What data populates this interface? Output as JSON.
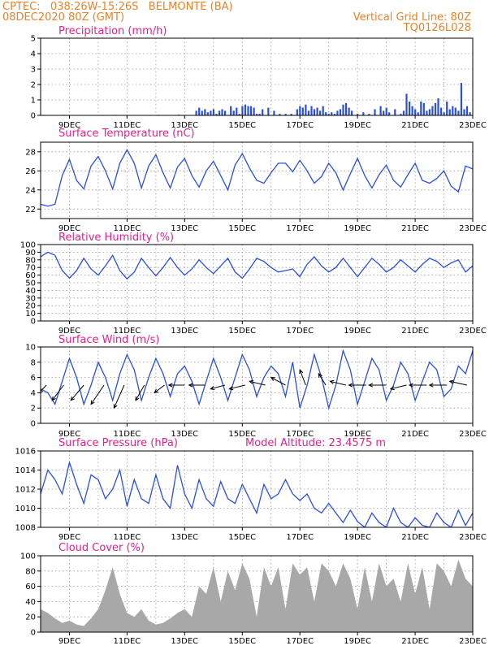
{
  "header": {
    "station": "CPTEC:   038:26W-15:26S   BELMONTE (BA)",
    "run": "08DEC2020 80Z (GMT)",
    "grid_note": "Vertical Grid Line: 80Z",
    "code": "TQ0126L028"
  },
  "colors": {
    "header": "#e8822a",
    "title": "#e0218a",
    "line": "#2a4fe0",
    "precip": "#2a4fe0",
    "cloud": "#a8a8a8",
    "arrow": "#000000"
  },
  "chart_data": [
    {
      "id": "precip",
      "type": "bar",
      "title": "Precipitation (mm/h)",
      "x_range": [
        8,
        23
      ],
      "ylim": [
        0,
        5
      ],
      "yticks": [
        "0",
        "1",
        "2",
        "3",
        "4",
        "5"
      ],
      "xticks": [
        "9DEC",
        "11DEC",
        "13DEC",
        "15DEC",
        "17DEC",
        "19DEC",
        "21DEC",
        "23DEC"
      ],
      "x": [
        8.1,
        8.4,
        8.8,
        9.3,
        9.9,
        10.6,
        11.4,
        12.1,
        12.8,
        13.4,
        13.5,
        13.6,
        13.7,
        13.8,
        13.9,
        14.0,
        14.1,
        14.2,
        14.3,
        14.4,
        14.6,
        14.7,
        14.8,
        14.9,
        15.0,
        15.1,
        15.2,
        15.3,
        15.4,
        15.5,
        15.6,
        15.7,
        15.9,
        16.1,
        16.3,
        16.5,
        16.7,
        16.9,
        17.0,
        17.1,
        17.2,
        17.3,
        17.4,
        17.5,
        17.6,
        17.7,
        17.8,
        17.9,
        18.0,
        18.1,
        18.2,
        18.3,
        18.4,
        18.5,
        18.6,
        18.7,
        18.8,
        19.0,
        19.2,
        19.4,
        19.6,
        19.8,
        19.9,
        20.0,
        20.1,
        20.3,
        20.5,
        20.6,
        20.7,
        20.8,
        20.9,
        21.0,
        21.1,
        21.2,
        21.3,
        21.4,
        21.5,
        21.6,
        21.7,
        21.8,
        21.9,
        22.0,
        22.1,
        22.2,
        22.3,
        22.4,
        22.5,
        22.6,
        22.7,
        22.8,
        22.9
      ],
      "values": [
        0.03,
        0.02,
        0.03,
        0.02,
        0.02,
        0.03,
        0.02,
        0.03,
        0.05,
        0.3,
        0.5,
        0.3,
        0.4,
        0.2,
        0.3,
        0.4,
        0.1,
        0.3,
        0.4,
        0.3,
        0.6,
        0.3,
        0.5,
        0.1,
        0.6,
        0.7,
        0.6,
        0.6,
        0.5,
        0.1,
        0.1,
        0.4,
        0.5,
        0.3,
        0.1,
        0.1,
        0.1,
        0.4,
        0.6,
        0.5,
        0.7,
        0.3,
        0.6,
        0.4,
        0.5,
        0.3,
        0.6,
        0.2,
        0.1,
        0.2,
        0.1,
        0.3,
        0.4,
        0.7,
        0.8,
        0.5,
        0.3,
        0.1,
        0.2,
        0.1,
        0.4,
        0.6,
        0.3,
        0.5,
        0.2,
        0.4,
        0.1,
        0.3,
        1.4,
        0.9,
        0.6,
        0.4,
        0.2,
        0.9,
        0.8,
        0.3,
        0.4,
        0.6,
        0.8,
        1.1,
        0.5,
        0.2,
        0.9,
        0.4,
        0.6,
        0.5,
        0.3,
        2.1,
        0.4,
        0.6,
        0.2
      ]
    },
    {
      "id": "temp",
      "type": "line",
      "title": "Surface Temperature (nC)",
      "x_range": [
        8,
        23
      ],
      "ylim": [
        21,
        29
      ],
      "yticks": [
        "22",
        "24",
        "26",
        "28"
      ],
      "xticks": [
        "9DEC",
        "11DEC",
        "13DEC",
        "15DEC",
        "17DEC",
        "19DEC",
        "21DEC",
        "23DEC"
      ],
      "x": [
        8.0,
        8.25,
        8.5,
        8.75,
        9.0,
        9.25,
        9.5,
        9.75,
        10.0,
        10.25,
        10.5,
        10.75,
        11.0,
        11.25,
        11.5,
        11.75,
        12.0,
        12.25,
        12.5,
        12.75,
        13.0,
        13.25,
        13.5,
        13.75,
        14.0,
        14.25,
        14.5,
        14.75,
        15.0,
        15.25,
        15.5,
        15.75,
        16.0,
        16.25,
        16.5,
        16.75,
        17.0,
        17.25,
        17.5,
        17.75,
        18.0,
        18.25,
        18.5,
        18.75,
        19.0,
        19.25,
        19.5,
        19.75,
        20.0,
        20.25,
        20.5,
        20.75,
        21.0,
        21.25,
        21.5,
        21.75,
        22.0,
        22.25,
        22.5,
        22.75,
        23.0
      ],
      "values": [
        22.5,
        22.3,
        22.5,
        25.5,
        27.2,
        25.0,
        24.1,
        26.5,
        27.5,
        26.0,
        24.1,
        26.8,
        28.2,
        26.8,
        24.2,
        26.5,
        27.7,
        25.8,
        24.2,
        26.4,
        27.3,
        25.5,
        24.3,
        26.0,
        27.0,
        25.5,
        24.0,
        26.6,
        27.8,
        26.3,
        25.0,
        24.7,
        25.8,
        26.8,
        26.8,
        25.9,
        27.1,
        26.0,
        24.7,
        25.4,
        26.8,
        25.8,
        24.0,
        25.7,
        27.3,
        25.5,
        24.2,
        25.6,
        26.6,
        25.0,
        24.3,
        25.6,
        26.8,
        25.0,
        24.7,
        25.2,
        26.0,
        24.4,
        23.8,
        26.5,
        26.2
      ]
    },
    {
      "id": "rh",
      "type": "line",
      "title": "Relative Humidity (%)",
      "x_range": [
        8,
        23
      ],
      "ylim": [
        0,
        100
      ],
      "yticks": [
        "0",
        "10",
        "20",
        "30",
        "40",
        "50",
        "60",
        "70",
        "80",
        "90",
        "100"
      ],
      "xticks": [
        "9DEC",
        "11DEC",
        "13DEC",
        "15DEC",
        "17DEC",
        "19DEC",
        "21DEC",
        "23DEC"
      ],
      "x": [
        8.0,
        8.25,
        8.5,
        8.75,
        9.0,
        9.25,
        9.5,
        9.75,
        10.0,
        10.25,
        10.5,
        10.75,
        11.0,
        11.25,
        11.5,
        11.75,
        12.0,
        12.25,
        12.5,
        12.75,
        13.0,
        13.25,
        13.5,
        13.75,
        14.0,
        14.25,
        14.5,
        14.75,
        15.0,
        15.25,
        15.5,
        15.75,
        16.0,
        16.25,
        16.5,
        16.75,
        17.0,
        17.25,
        17.5,
        17.75,
        18.0,
        18.25,
        18.5,
        18.75,
        19.0,
        19.25,
        19.5,
        19.75,
        20.0,
        20.25,
        20.5,
        20.75,
        21.0,
        21.25,
        21.5,
        21.75,
        22.0,
        22.25,
        22.5,
        22.75,
        23.0
      ],
      "values": [
        84,
        90,
        86,
        66,
        56,
        66,
        82,
        68,
        60,
        72,
        86,
        66,
        55,
        64,
        82,
        70,
        59,
        70,
        83,
        70,
        60,
        68,
        80,
        70,
        62,
        72,
        82,
        64,
        56,
        68,
        82,
        78,
        70,
        64,
        66,
        68,
        58,
        74,
        84,
        72,
        64,
        70,
        82,
        70,
        58,
        70,
        82,
        74,
        64,
        70,
        80,
        72,
        64,
        74,
        82,
        78,
        70,
        76,
        80,
        64,
        72
      ]
    },
    {
      "id": "wind",
      "type": "line",
      "title": "Surface Wind (m/s)",
      "x_range": [
        8,
        23
      ],
      "ylim": [
        0,
        10
      ],
      "yticks": [
        "0",
        "2",
        "4",
        "6",
        "8",
        "10"
      ],
      "xticks": [
        "9DEC",
        "11DEC",
        "13DEC",
        "15DEC",
        "17DEC",
        "19DEC",
        "21DEC",
        "23DEC"
      ],
      "x": [
        8.0,
        8.25,
        8.5,
        8.75,
        9.0,
        9.25,
        9.5,
        9.75,
        10.0,
        10.25,
        10.5,
        10.75,
        11.0,
        11.25,
        11.5,
        11.75,
        12.0,
        12.25,
        12.5,
        12.75,
        13.0,
        13.25,
        13.5,
        13.75,
        14.0,
        14.25,
        14.5,
        14.75,
        15.0,
        15.25,
        15.5,
        15.75,
        16.0,
        16.25,
        16.5,
        16.75,
        17.0,
        17.25,
        17.5,
        17.75,
        18.0,
        18.25,
        18.5,
        18.75,
        19.0,
        19.25,
        19.5,
        19.75,
        20.0,
        20.25,
        20.5,
        20.75,
        21.0,
        21.25,
        21.5,
        21.75,
        22.0,
        22.25,
        22.5,
        22.75,
        23.0
      ],
      "values": [
        4.5,
        4.0,
        2.5,
        5.5,
        8.5,
        6.0,
        2.5,
        5.0,
        8.0,
        6.0,
        3.0,
        6.5,
        9.0,
        7.0,
        3.0,
        6.0,
        8.5,
        6.5,
        3.5,
        6.5,
        7.5,
        5.5,
        2.5,
        5.5,
        8.5,
        6.0,
        3.0,
        6.0,
        9.0,
        7.0,
        3.5,
        6.0,
        7.5,
        6.5,
        3.5,
        8.0,
        2.0,
        5.0,
        9.0,
        6.0,
        2.0,
        5.0,
        9.5,
        7.0,
        2.5,
        5.5,
        8.5,
        7.0,
        3.0,
        5.0,
        8.0,
        6.5,
        3.0,
        5.5,
        8.0,
        7.0,
        3.5,
        4.5,
        7.5,
        6.5,
        9.5
      ],
      "arrows": {
        "x": [
          8.2,
          8.8,
          9.5,
          10.2,
          10.9,
          11.6,
          12.3,
          13.0,
          13.7,
          14.4,
          15.1,
          15.8,
          16.5,
          17.2,
          17.9,
          18.6,
          19.3,
          20.0,
          20.7,
          21.4,
          22.1,
          22.8
        ],
        "dx": [
          -0.25,
          -0.4,
          -0.45,
          -0.45,
          -0.35,
          -0.3,
          -0.35,
          -0.55,
          -0.55,
          -0.5,
          -0.55,
          -0.55,
          -0.5,
          -0.2,
          -0.25,
          -0.55,
          -0.6,
          -0.6,
          -0.55,
          -0.6,
          -0.6,
          -0.6
        ],
        "dy": [
          -1.0,
          -2.0,
          -2.0,
          -2.5,
          -3.0,
          -2.0,
          -1.0,
          0.0,
          0.0,
          -0.5,
          -0.5,
          0.5,
          1.0,
          2.0,
          1.5,
          0.5,
          0.0,
          0.0,
          -0.5,
          0.0,
          0.0,
          0.5
        ]
      }
    },
    {
      "id": "pres",
      "type": "line",
      "title": "Surface Pressure (hPa)",
      "annotation": "Model Altitude: 23.4575 m",
      "x_range": [
        8,
        23
      ],
      "ylim": [
        1008,
        1016
      ],
      "yticks": [
        "1008",
        "1010",
        "1012",
        "1014",
        "1016"
      ],
      "xticks": [
        "9DEC",
        "11DEC",
        "13DEC",
        "15DEC",
        "17DEC",
        "19DEC",
        "21DEC",
        "23DEC"
      ],
      "x": [
        8.0,
        8.25,
        8.5,
        8.75,
        9.0,
        9.25,
        9.5,
        9.75,
        10.0,
        10.25,
        10.5,
        10.75,
        11.0,
        11.25,
        11.5,
        11.75,
        12.0,
        12.25,
        12.5,
        12.75,
        13.0,
        13.25,
        13.5,
        13.75,
        14.0,
        14.25,
        14.5,
        14.75,
        15.0,
        15.25,
        15.5,
        15.75,
        16.0,
        16.25,
        16.5,
        16.75,
        17.0,
        17.25,
        17.5,
        17.75,
        18.0,
        18.25,
        18.5,
        18.75,
        19.0,
        19.25,
        19.5,
        19.75,
        20.0,
        20.25,
        20.5,
        20.75,
        21.0,
        21.25,
        21.5,
        21.75,
        22.0,
        22.25,
        22.5,
        22.75,
        23.0
      ],
      "values": [
        1011.5,
        1014.0,
        1013.0,
        1011.5,
        1014.8,
        1012.5,
        1010.5,
        1013.5,
        1013.0,
        1011.0,
        1012.0,
        1014.0,
        1010.2,
        1013.0,
        1011.0,
        1010.5,
        1013.5,
        1011.0,
        1010.0,
        1014.5,
        1011.5,
        1010.0,
        1013.0,
        1011.0,
        1010.2,
        1012.8,
        1011.0,
        1010.5,
        1012.5,
        1011.0,
        1009.5,
        1012.5,
        1011.0,
        1011.5,
        1013.0,
        1011.5,
        1010.8,
        1011.5,
        1010.0,
        1009.5,
        1010.5,
        1009.5,
        1008.5,
        1009.8,
        1008.6,
        1008.0,
        1009.5,
        1008.5,
        1008.0,
        1010.0,
        1008.5,
        1008.0,
        1009.0,
        1008.2,
        1008.0,
        1009.5,
        1008.5,
        1008.0,
        1009.8,
        1008.2,
        1009.5
      ]
    },
    {
      "id": "cloud",
      "type": "area",
      "title": "Cloud Cover (%)",
      "x_range": [
        8,
        23
      ],
      "ylim": [
        0,
        100
      ],
      "yticks": [
        "0",
        "20",
        "40",
        "60",
        "80",
        "100"
      ],
      "xticks": [
        "9DEC",
        "11DEC",
        "13DEC",
        "15DEC",
        "17DEC",
        "19DEC",
        "21DEC",
        "23DEC"
      ],
      "x": [
        8.0,
        8.25,
        8.5,
        8.75,
        9.0,
        9.25,
        9.5,
        9.75,
        10.0,
        10.25,
        10.5,
        10.75,
        11.0,
        11.25,
        11.5,
        11.75,
        12.0,
        12.25,
        12.5,
        12.75,
        13.0,
        13.25,
        13.5,
        13.75,
        14.0,
        14.25,
        14.5,
        14.75,
        15.0,
        15.25,
        15.5,
        15.75,
        16.0,
        16.25,
        16.5,
        16.75,
        17.0,
        17.25,
        17.5,
        17.75,
        18.0,
        18.25,
        18.5,
        18.75,
        19.0,
        19.25,
        19.5,
        19.75,
        20.0,
        20.25,
        20.5,
        20.75,
        21.0,
        21.25,
        21.5,
        21.75,
        22.0,
        22.25,
        22.5,
        22.75,
        23.0
      ],
      "values": [
        30,
        25,
        18,
        12,
        15,
        10,
        8,
        18,
        30,
        55,
        85,
        50,
        25,
        20,
        30,
        15,
        10,
        12,
        18,
        25,
        30,
        20,
        60,
        50,
        85,
        40,
        80,
        55,
        90,
        70,
        20,
        85,
        60,
        85,
        30,
        90,
        75,
        85,
        40,
        90,
        80,
        60,
        90,
        70,
        30,
        85,
        40,
        90,
        60,
        70,
        40,
        90,
        50,
        85,
        30,
        90,
        80,
        60,
        95,
        70,
        60
      ]
    }
  ]
}
